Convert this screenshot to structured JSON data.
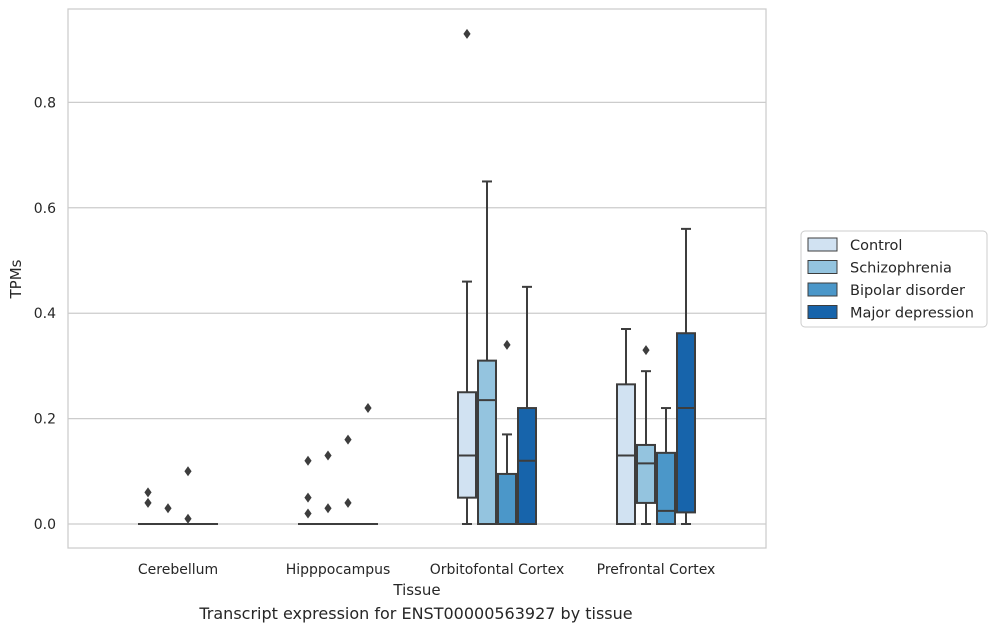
{
  "chart_data": {
    "type": "box",
    "xlabel": "Tissue",
    "ylabel": "TPMs",
    "caption": "Transcript expression for ENST00000563927 by tissue",
    "ylim": [
      -0.045,
      0.98
    ],
    "yticks": [
      0.0,
      0.2,
      0.4,
      0.6,
      0.8
    ],
    "grid": true,
    "legend_position": "right",
    "categories": [
      "Cerebellum",
      "Hipppocampus",
      "Orbitofontal Cortex",
      "Prefrontal Cortex"
    ],
    "series": [
      {
        "name": "Control",
        "color": "#d1e2f2"
      },
      {
        "name": "Schizophrenia",
        "color": "#94c4df"
      },
      {
        "name": "Bipolar disorder",
        "color": "#4b97c9"
      },
      {
        "name": "Major depression",
        "color": "#1764ab"
      }
    ],
    "boxes": [
      [
        {
          "q1": 0,
          "median": 0,
          "q3": 0,
          "whisker_low": 0,
          "whisker_high": 0,
          "outliers": [
            0.06,
            0.04
          ]
        },
        {
          "q1": 0,
          "median": 0,
          "q3": 0,
          "whisker_low": 0,
          "whisker_high": 0,
          "outliers": [
            0.03
          ]
        },
        {
          "q1": 0,
          "median": 0,
          "q3": 0,
          "whisker_low": 0,
          "whisker_high": 0,
          "outliers": [
            0.1,
            0.01
          ]
        },
        {
          "q1": 0,
          "median": 0,
          "q3": 0,
          "whisker_low": 0,
          "whisker_high": 0,
          "outliers": []
        }
      ],
      [
        {
          "q1": 0,
          "median": 0,
          "q3": 0,
          "whisker_low": 0,
          "whisker_high": 0,
          "outliers": [
            0.12,
            0.05,
            0.02
          ]
        },
        {
          "q1": 0,
          "median": 0,
          "q3": 0,
          "whisker_low": 0,
          "whisker_high": 0,
          "outliers": [
            0.13,
            0.03
          ]
        },
        {
          "q1": 0,
          "median": 0,
          "q3": 0,
          "whisker_low": 0,
          "whisker_high": 0,
          "outliers": [
            0.16,
            0.04
          ]
        },
        {
          "q1": 0,
          "median": 0,
          "q3": 0,
          "whisker_low": 0,
          "whisker_high": 0,
          "outliers": [
            0.22
          ]
        }
      ],
      [
        {
          "q1": 0.05,
          "median": 0.13,
          "q3": 0.25,
          "whisker_low": 0,
          "whisker_high": 0.46,
          "outliers": [
            0.93
          ]
        },
        {
          "q1": 0,
          "median": 0.235,
          "q3": 0.31,
          "whisker_low": 0,
          "whisker_high": 0.65,
          "outliers": []
        },
        {
          "q1": 0,
          "median": 0,
          "q3": 0.095,
          "whisker_low": 0,
          "whisker_high": 0.17,
          "outliers": [
            0.34
          ]
        },
        {
          "q1": 0,
          "median": 0.12,
          "q3": 0.22,
          "whisker_low": 0,
          "whisker_high": 0.45,
          "outliers": []
        }
      ],
      [
        {
          "q1": 0,
          "median": 0.13,
          "q3": 0.265,
          "whisker_low": 0,
          "whisker_high": 0.37,
          "outliers": []
        },
        {
          "q1": 0.04,
          "median": 0.115,
          "q3": 0.15,
          "whisker_low": 0,
          "whisker_high": 0.29,
          "outliers": [
            0.33
          ]
        },
        {
          "q1": 0,
          "median": 0.025,
          "q3": 0.135,
          "whisker_low": 0,
          "whisker_high": 0.22,
          "outliers": []
        },
        {
          "q1": 0.022,
          "median": 0.22,
          "q3": 0.362,
          "whisker_low": 0,
          "whisker_high": 0.56,
          "outliers": []
        }
      ]
    ]
  }
}
